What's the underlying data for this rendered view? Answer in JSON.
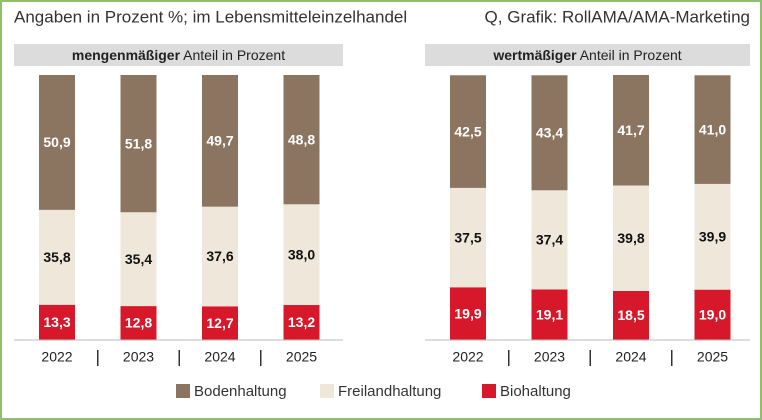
{
  "header": {
    "subtitle": "Angaben in Prozent %; im Lebensmitteleinzelhandel",
    "source": "Q, Grafik: RollAMA/AMA-Marketing"
  },
  "chart_data": [
    {
      "type": "bar",
      "stacked": true,
      "title_bold": "mengenmäßiger",
      "title_rest": " Anteil in Prozent",
      "categories": [
        "2022",
        "2023",
        "2024",
        "2025"
      ],
      "ylim": [
        0,
        100
      ],
      "series": [
        {
          "name": "Bodenhaltung",
          "color": "#8b7560",
          "values": [
            50.9,
            51.8,
            49.7,
            48.8
          ],
          "value_labels": [
            "50,9",
            "51,8",
            "49,7",
            "48,8"
          ]
        },
        {
          "name": "Freilandhaltung",
          "color": "#efe7da",
          "values": [
            35.8,
            35.4,
            37.6,
            38.0
          ],
          "value_labels": [
            "35,8",
            "35,4",
            "37,6",
            "38,0"
          ]
        },
        {
          "name": "Biohaltung",
          "color": "#d7182a",
          "values": [
            13.3,
            12.8,
            12.7,
            13.2
          ],
          "value_labels": [
            "13,3",
            "12,8",
            "12,7",
            "13,2"
          ]
        }
      ]
    },
    {
      "type": "bar",
      "stacked": true,
      "title_bold": "wertmäßiger",
      "title_rest": " Anteil in Prozent",
      "categories": [
        "2022",
        "2023",
        "2024",
        "2025"
      ],
      "ylim": [
        0,
        100
      ],
      "series": [
        {
          "color": "#8b7560",
          "values": [
            42.5,
            43.4,
            41.7,
            41.0
          ],
          "value_labels": [
            "42,5",
            "43,4",
            "41,7",
            "41,0"
          ]
        },
        {
          "color": "#efe7da",
          "values": [
            37.5,
            37.4,
            39.8,
            39.9
          ],
          "value_labels": [
            "37,5",
            "37,4",
            "39,8",
            "39,9"
          ]
        },
        {
          "color": "#d7182a",
          "values": [
            19.9,
            19.1,
            18.5,
            19.0
          ],
          "value_labels": [
            "19,9",
            "19,1",
            "18,5",
            "19,0"
          ]
        }
      ]
    }
  ]
}
